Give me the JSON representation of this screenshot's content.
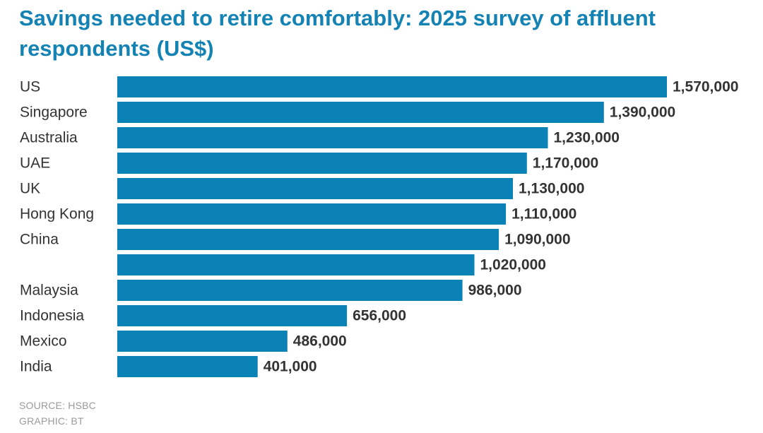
{
  "title": "Savings needed to retire comfortably: 2025 survey of affluent respondents (US$)",
  "footer": {
    "source": "SOURCE: HSBC",
    "credit": "GRAPHIC: BT"
  },
  "colors": {
    "bar": "#0a82b5",
    "title": "#1483b4",
    "text": "#333333",
    "footer": "#9a9a9a"
  },
  "chart_data": {
    "type": "bar",
    "orientation": "horizontal",
    "categories": [
      "US",
      "Singapore",
      "Australia",
      "UAE",
      "UK",
      "Hong Kong",
      "China",
      "",
      "Malaysia",
      "Indonesia",
      "Mexico",
      "India"
    ],
    "values": [
      1570000,
      1390000,
      1230000,
      1170000,
      1130000,
      1110000,
      1090000,
      1020000,
      986000,
      656000,
      486000,
      401000
    ],
    "value_labels": [
      "1,570,000",
      "1,390,000",
      "1,230,000",
      "1,170,000",
      "1,130,000",
      "1,110,000",
      "1,090,000",
      "1,020,000",
      "986,000",
      "656,000",
      "486,000",
      "401,000"
    ],
    "title": "Savings needed to retire comfortably: 2025 survey of affluent respondents (US$)",
    "xlabel": "",
    "ylabel": "",
    "xlim": [
      0,
      1570000
    ],
    "grid": false,
    "legend": "none"
  }
}
